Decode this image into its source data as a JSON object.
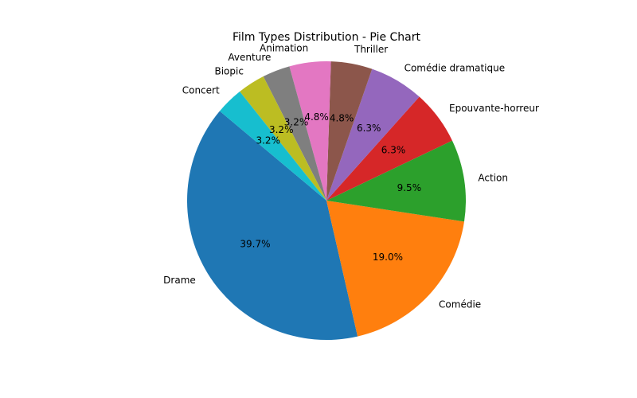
{
  "chart_data": {
    "type": "pie",
    "title": "Film Types Distribution - Pie Chart",
    "start_angle_deg": 140,
    "direction": "counterclockwise",
    "slices": [
      {
        "label": "Drame",
        "value": 39.7,
        "pct_label": "39.7%",
        "color": "#1f77b4"
      },
      {
        "label": "Comédie",
        "value": 19.0,
        "pct_label": "19.0%",
        "color": "#ff7f0e"
      },
      {
        "label": "Action",
        "value": 9.5,
        "pct_label": "9.5%",
        "color": "#2ca02c"
      },
      {
        "label": "Epouvante-horreur",
        "value": 6.3,
        "pct_label": "6.3%",
        "color": "#d62728"
      },
      {
        "label": "Comédie dramatique",
        "value": 6.3,
        "pct_label": "6.3%",
        "color": "#9467bd"
      },
      {
        "label": "Thriller",
        "value": 4.8,
        "pct_label": "4.8%",
        "color": "#8c564b"
      },
      {
        "label": "Animation",
        "value": 4.8,
        "pct_label": "4.8%",
        "color": "#e377c2"
      },
      {
        "label": "Aventure",
        "value": 3.2,
        "pct_label": "3.2%",
        "color": "#7f7f7f"
      },
      {
        "label": "Biopic",
        "value": 3.2,
        "pct_label": "3.2%",
        "color": "#bcbd22"
      },
      {
        "label": "Concert",
        "value": 3.2,
        "pct_label": "3.2%",
        "color": "#17becf"
      }
    ]
  }
}
